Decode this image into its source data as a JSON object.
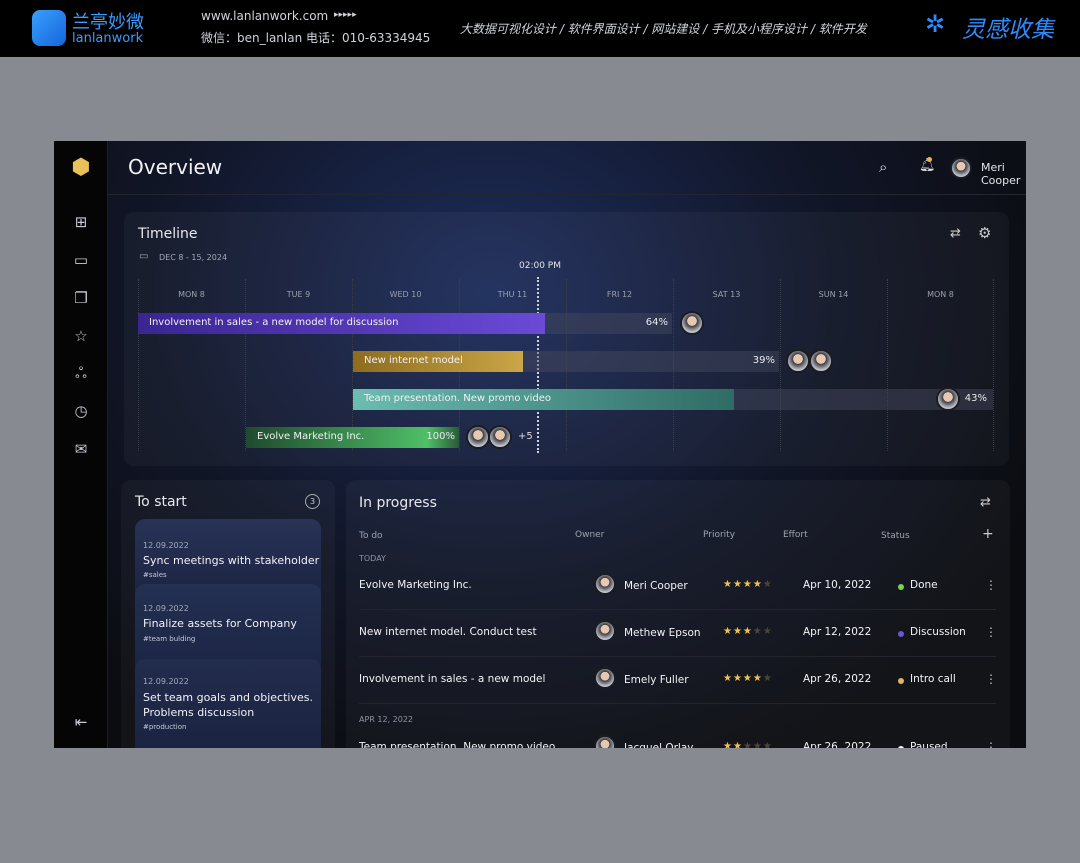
{
  "banner": {
    "brand_cn": "兰亭妙微",
    "brand_en": "lanlanwork",
    "url": "www.lanlanwork.com",
    "arrows": "▸▸▸▸▸",
    "contact": "微信：ben_lanlan    电话：010-63334945",
    "services": "大数据可视化设计  /  软件界面设计  /  网站建设  /  手机及小程序设计  /  软件开发",
    "right_brand": "灵感收集"
  },
  "header": {
    "title": "Overview",
    "user": "Meri Cooper"
  },
  "sidebar": {
    "items": [
      "dashboard-icon",
      "calendar-icon",
      "copy-icon",
      "star-icon",
      "users-icon",
      "alarm-icon",
      "mail-icon"
    ],
    "collapse": "collapse-icon"
  },
  "timeline": {
    "title": "Timeline",
    "date_range": "DEC 8 - 15,  2024",
    "now_label": "02:00 PM",
    "days": [
      "MON 8",
      "TUE 9",
      "WED 10",
      "THU 11",
      "FRI 12",
      "SAT 13",
      "SUN 14",
      "MON 8"
    ],
    "tasks": [
      {
        "name": "Involvement in sales - a new model for discussion",
        "progress": "64%",
        "color": "#5b3bc4"
      },
      {
        "name": "New internet model",
        "progress": "39%",
        "color": "#b08a2c"
      },
      {
        "name": "Team presentation. New promo video",
        "progress": "43%",
        "color": "#5fb0a6"
      },
      {
        "name": "Evolve Marketing Inc.",
        "progress": "100%",
        "color": "#3fa45a",
        "extra": "+5"
      }
    ]
  },
  "to_start": {
    "title": "To start",
    "count": "3",
    "cards": [
      {
        "date": "12.09.2022",
        "title": "Sync meetings with stakeholder",
        "tag": "#sales"
      },
      {
        "date": "12.09.2022",
        "title": "Finalize assets for Company",
        "tag": "#team bulding"
      },
      {
        "date": "12.09.2022",
        "title": "Set team goals and objectives. Problems discussion",
        "tag": "#production"
      }
    ]
  },
  "in_progress": {
    "title": "In progress",
    "columns": [
      "To do",
      "Owner",
      "Priority",
      "Effort",
      "Status"
    ],
    "groups": [
      "TODAY",
      "APR 12, 2022"
    ],
    "rows": [
      {
        "todo": "Evolve Marketing Inc.",
        "owner": "Meri Cooper",
        "priority": 4,
        "effort": "Apr 10, 2022",
        "status": "Done",
        "status_color": "#7bd14a"
      },
      {
        "todo": "New internet model. Conduct test",
        "owner": "Methew Epson",
        "priority": 3,
        "effort": "Apr 12, 2022",
        "status": "Discussion",
        "status_color": "#6a55d6"
      },
      {
        "todo": "Involvement in sales - a new model",
        "owner": "Emely Fuller",
        "priority": 4,
        "effort": "Apr 26, 2022",
        "status": "Intro call",
        "status_color": "#e0b760"
      },
      {
        "todo": "Team presentation. New promo video",
        "owner": "Jacquel Orlay",
        "priority": 2,
        "effort": "Apr 26, 2022",
        "status": "Paused",
        "status_color": "#ffffff"
      }
    ]
  }
}
